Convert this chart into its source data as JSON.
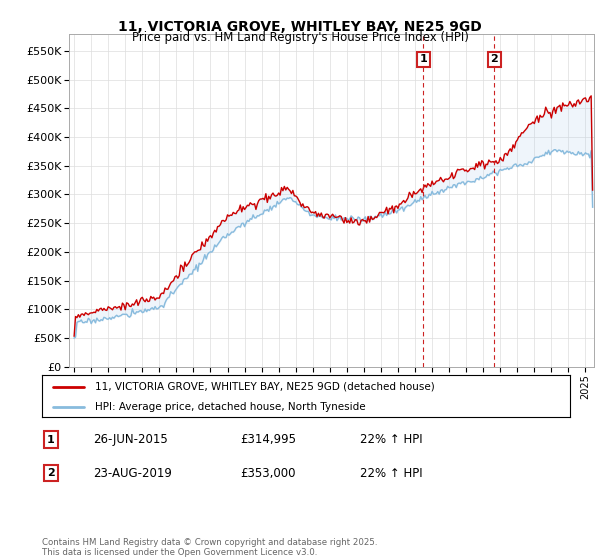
{
  "title": "11, VICTORIA GROVE, WHITLEY BAY, NE25 9GD",
  "subtitle": "Price paid vs. HM Land Registry's House Price Index (HPI)",
  "line1_label": "11, VICTORIA GROVE, WHITLEY BAY, NE25 9GD (detached house)",
  "line2_label": "HPI: Average price, detached house, North Tyneside",
  "line1_color": "#cc0000",
  "line2_color": "#88bbdd",
  "annotation1": {
    "num": "1",
    "date": "26-JUN-2015",
    "price": "£314,995",
    "note": "22% ↑ HPI",
    "x_year": 2015.49
  },
  "annotation2": {
    "num": "2",
    "date": "23-AUG-2019",
    "price": "£353,000",
    "note": "22% ↑ HPI",
    "x_year": 2019.65
  },
  "ylim": [
    0,
    580000
  ],
  "yticks": [
    0,
    50000,
    100000,
    150000,
    200000,
    250000,
    300000,
    350000,
    400000,
    450000,
    500000,
    550000
  ],
  "xlim": [
    1994.7,
    2025.5
  ],
  "footer": "Contains HM Land Registry data © Crown copyright and database right 2025.\nThis data is licensed under the Open Government Licence v3.0.",
  "grid_color": "#dddddd",
  "ann_box_color": "#cc2222"
}
